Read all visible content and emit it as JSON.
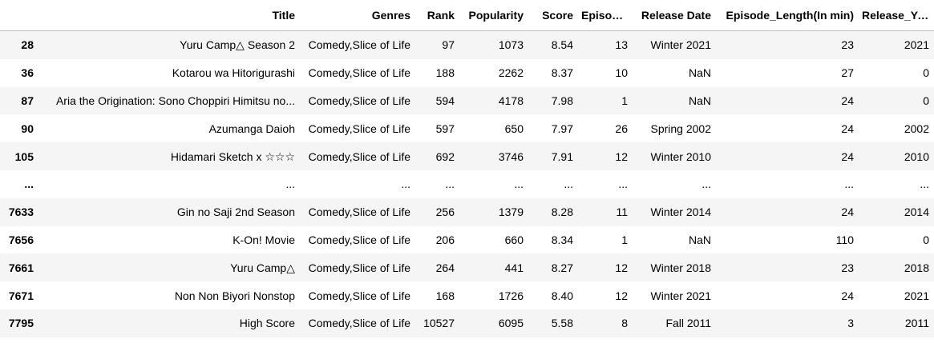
{
  "table": {
    "index_header": "",
    "columns": [
      "Title",
      "Genres",
      "Rank",
      "Popularity",
      "Score",
      "Episodes",
      "Release Date",
      "Episode_Length(In min)",
      "Release_Year"
    ],
    "rows": [
      {
        "index": "28",
        "cells": [
          "Yuru Camp△ Season 2",
          "Comedy,Slice of Life",
          "97",
          "1073",
          "8.54",
          "13",
          "Winter 2021",
          "23",
          "2021"
        ]
      },
      {
        "index": "36",
        "cells": [
          "Kotarou wa Hitorigurashi",
          "Comedy,Slice of Life",
          "188",
          "2262",
          "8.37",
          "10",
          "NaN",
          "27",
          "0"
        ]
      },
      {
        "index": "87",
        "cells": [
          "Aria the Origination: Sono Choppiri Himitsu no...",
          "Comedy,Slice of Life",
          "594",
          "4178",
          "7.98",
          "1",
          "NaN",
          "24",
          "0"
        ]
      },
      {
        "index": "90",
        "cells": [
          "Azumanga Daioh",
          "Comedy,Slice of Life",
          "597",
          "650",
          "7.97",
          "26",
          "Spring 2002",
          "24",
          "2002"
        ]
      },
      {
        "index": "105",
        "cells": [
          "Hidamari Sketch x ☆☆☆",
          "Comedy,Slice of Life",
          "692",
          "3746",
          "7.91",
          "12",
          "Winter 2010",
          "24",
          "2010"
        ]
      },
      {
        "index": "...",
        "cells": [
          "...",
          "...",
          "...",
          "...",
          "...",
          "...",
          "...",
          "...",
          "..."
        ]
      },
      {
        "index": "7633",
        "cells": [
          "Gin no Saji 2nd Season",
          "Comedy,Slice of Life",
          "256",
          "1379",
          "8.28",
          "11",
          "Winter 2014",
          "24",
          "2014"
        ]
      },
      {
        "index": "7656",
        "cells": [
          "K-On! Movie",
          "Comedy,Slice of Life",
          "206",
          "660",
          "8.34",
          "1",
          "NaN",
          "110",
          "0"
        ]
      },
      {
        "index": "7661",
        "cells": [
          "Yuru Camp△",
          "Comedy,Slice of Life",
          "264",
          "441",
          "8.27",
          "12",
          "Winter 2018",
          "23",
          "2018"
        ]
      },
      {
        "index": "7671",
        "cells": [
          "Non Non Biyori Nonstop",
          "Comedy,Slice of Life",
          "168",
          "1726",
          "8.40",
          "12",
          "Winter 2021",
          "24",
          "2021"
        ]
      },
      {
        "index": "7795",
        "cells": [
          "High Score",
          "Comedy,Slice of Life",
          "10527",
          "6095",
          "5.58",
          "8",
          "Fall 2011",
          "3",
          "2011"
        ]
      }
    ]
  },
  "colors": {
    "stripe": "#f5f5f5",
    "background": "#ffffff",
    "header_rule": "#bdbdbd",
    "text": "#000000"
  }
}
